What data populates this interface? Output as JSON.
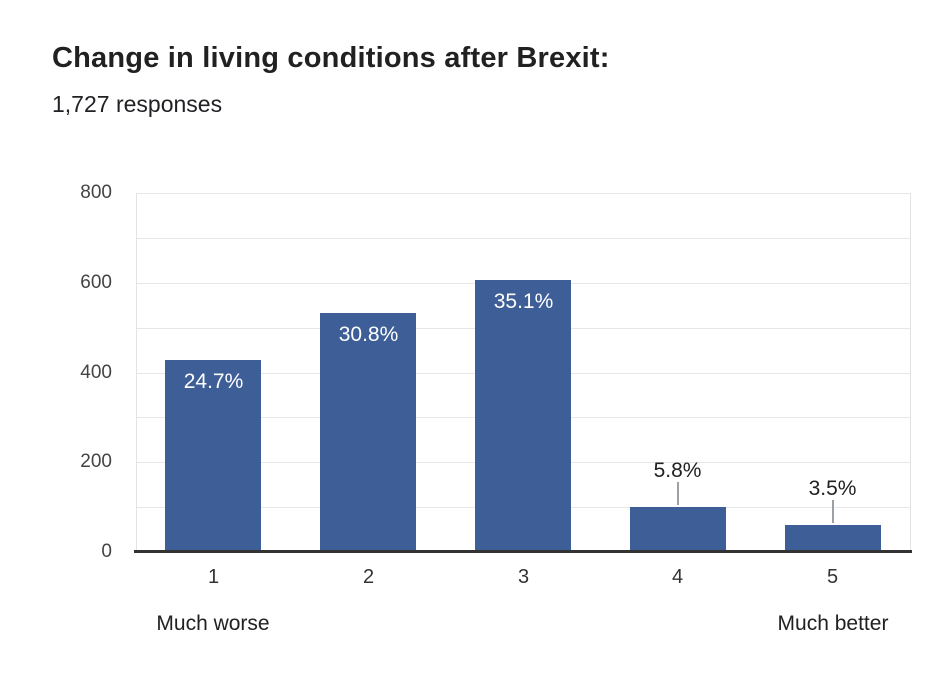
{
  "header": {
    "title": "Change in living conditions after Brexit:",
    "subtitle": "1,727 responses"
  },
  "chart_data": {
    "type": "bar",
    "title": "Change in living conditions after Brexit:",
    "subtitle": "1,727 responses",
    "categories": [
      "1",
      "2",
      "3",
      "4",
      "5"
    ],
    "values": [
      427,
      532,
      607,
      100,
      61
    ],
    "percent_labels": [
      "24.7%",
      "30.8%",
      "35.1%",
      "5.8%",
      "3.5%"
    ],
    "label_placement": [
      "inside",
      "inside",
      "inside",
      "outside",
      "outside"
    ],
    "axis_end_labels": {
      "min": "Much worse",
      "max": "Much better"
    },
    "xlabel": "",
    "ylabel": "",
    "ylim": [
      0,
      800
    ],
    "yticks": [
      0,
      200,
      400,
      600,
      800
    ],
    "grid_interval": 100,
    "grid": true,
    "legend_position": "none",
    "bar_color": "#3d5e96"
  },
  "colors": {
    "background": "#ffffff",
    "bar": "#3d5e96",
    "bar_label_inside": "#ffffff",
    "bar_label_outside": "#212121",
    "gridline": "#e6e6e6",
    "axis_line": "#333333",
    "stem": "#9aa0a6",
    "y_tick_label": "#444444",
    "x_tick_label": "#333333",
    "title": "#212121",
    "subtitle": "#202124"
  }
}
